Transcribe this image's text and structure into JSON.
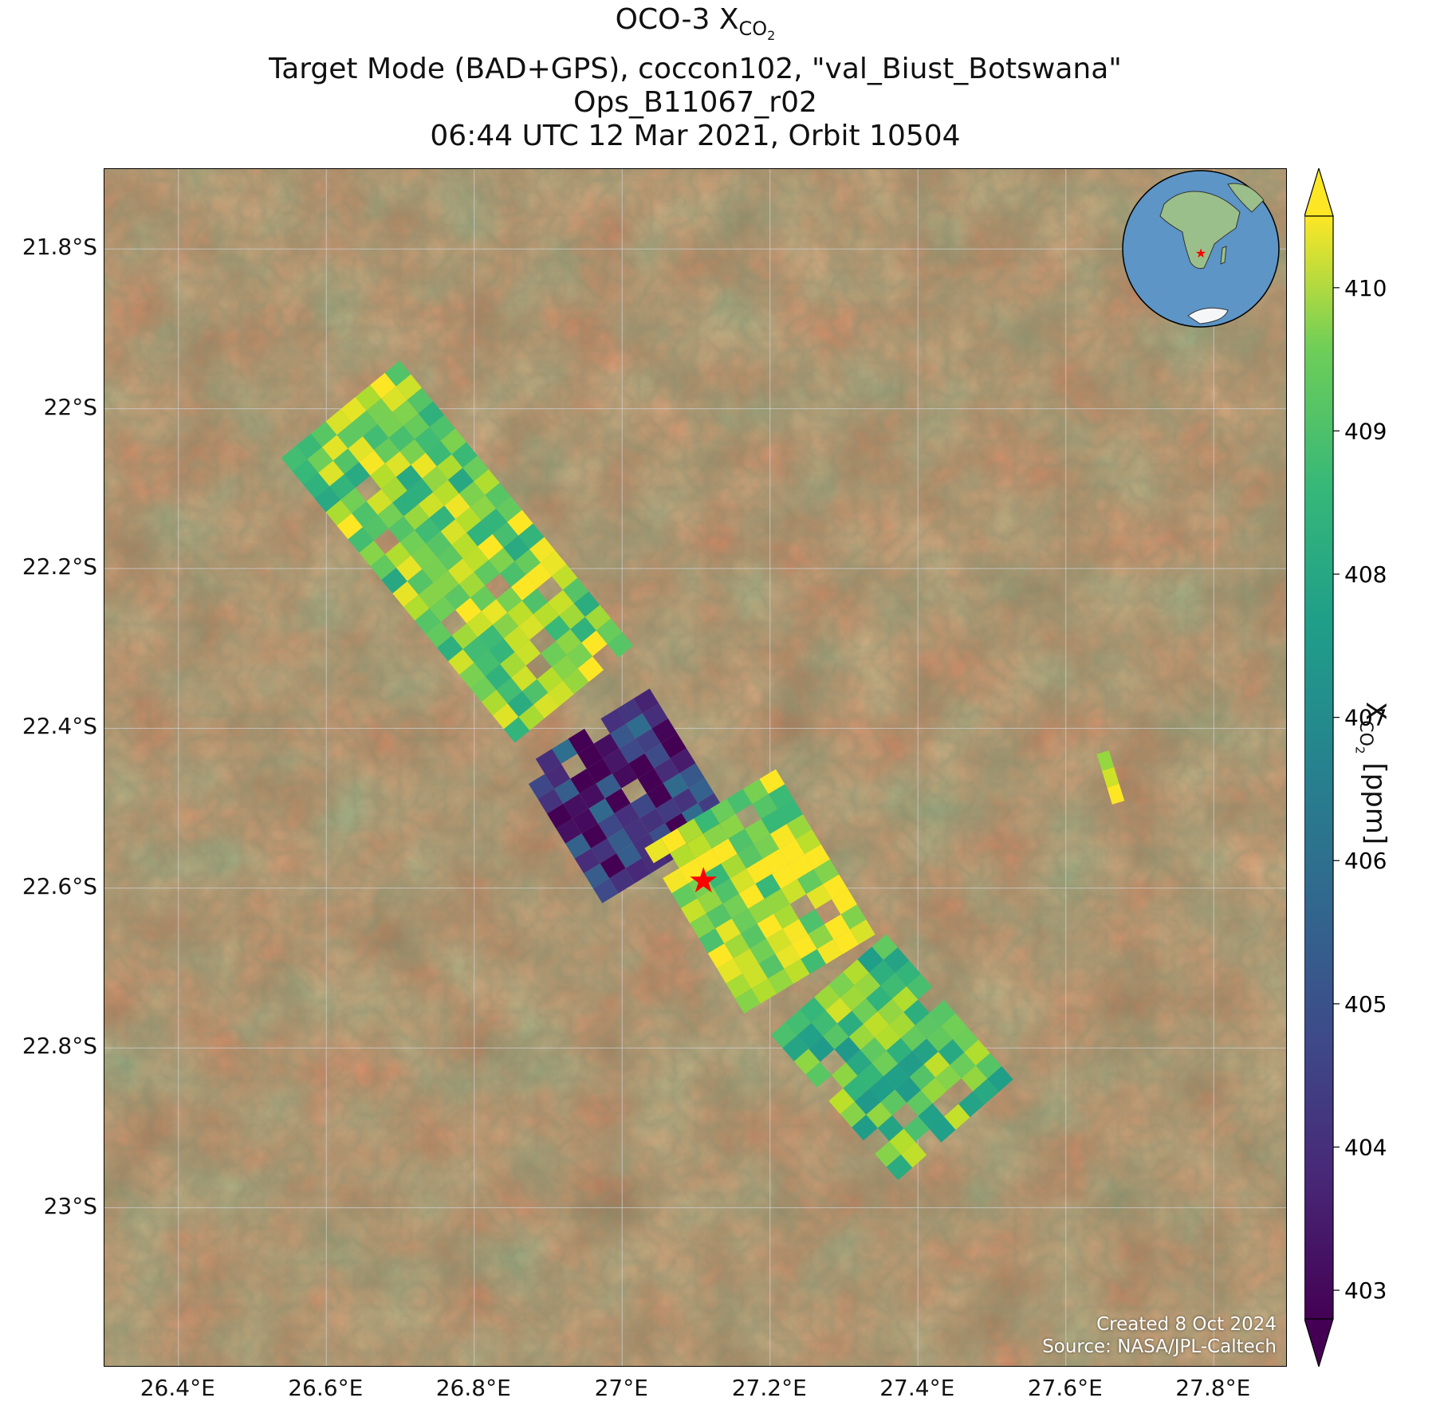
{
  "title": {
    "line1_prefix": "OCO-3 X",
    "line1_sub": "CO",
    "line1_subsub": "2",
    "line2": "Target Mode (BAD+GPS), coccon102, \"val_Biust_Botswana\"",
    "line3": "Ops_B11067_r02",
    "line4": "06:44 UTC 12 Mar 2021, Orbit 10504"
  },
  "map": {
    "lon_ticks": [
      "26.4°E",
      "26.6°E",
      "26.8°E",
      "27°E",
      "27.2°E",
      "27.4°E",
      "27.6°E",
      "27.8°E"
    ],
    "lat_ticks": [
      "21.8°S",
      "22°S",
      "22.2°S",
      "22.4°S",
      "22.6°S",
      "22.8°S",
      "23°S"
    ],
    "lon_range": [
      26.3,
      27.9
    ],
    "lat_range": [
      -21.7,
      -23.2
    ],
    "target": {
      "name": "val_Biust_Botswana",
      "lon": 27.11,
      "lat": -22.59,
      "marker_color": "#ff0000"
    },
    "basemap_colors": [
      "#8a6238",
      "#7a5a36",
      "#6b5a3a",
      "#946038"
    ],
    "gridline_color": "#d0d0d0",
    "credits": [
      "Created 8 Oct 2024",
      "Source: NASA/JPL-Caltech"
    ]
  },
  "colorbar": {
    "label_prefix": "X",
    "label_sub": "CO",
    "label_subsub": "2",
    "label_suffix": " [ppm]",
    "ticks": [
      "403",
      "404",
      "405",
      "406",
      "407",
      "408",
      "409",
      "410"
    ],
    "range": [
      402.8,
      410.5
    ],
    "colormap": "viridis",
    "extend": "both"
  },
  "inset_globe": {
    "ocean_color": "#5c95c6",
    "land_color": "#9bbf8a",
    "marker_color": "#ff0000"
  },
  "chart_data": {
    "type": "heatmap",
    "title": "OCO-3 XCO2 Target Mode (BAD+GPS), coccon102, \"val_Biust_Botswana\" Ops_B11067_r02 06:44 UTC 12 Mar 2021, Orbit 10504",
    "xlabel": "",
    "ylabel": "",
    "colorbar_label": "XCO2 [ppm]",
    "value_range": [
      403,
      410
    ],
    "swath_segments": [
      {
        "from_lon": 26.62,
        "from_lat": -22.0,
        "to_lon": 26.93,
        "to_lat": -22.35,
        "mean_xco2": 409.0
      },
      {
        "from_lon": 26.95,
        "from_lat": -22.4,
        "to_lon": 27.05,
        "to_lat": -22.55,
        "mean_xco2": 404.0
      },
      {
        "from_lon": 27.12,
        "from_lat": -22.5,
        "to_lon": 27.25,
        "to_lat": -22.7,
        "mean_xco2": 409.5
      },
      {
        "from_lon": 27.28,
        "from_lat": -22.72,
        "to_lon": 27.45,
        "to_lat": -22.9,
        "mean_xco2": 408.5
      },
      {
        "from_lon": 27.65,
        "from_lat": -22.43,
        "to_lon": 27.67,
        "to_lat": -22.49,
        "mean_xco2": 409.5
      }
    ]
  }
}
